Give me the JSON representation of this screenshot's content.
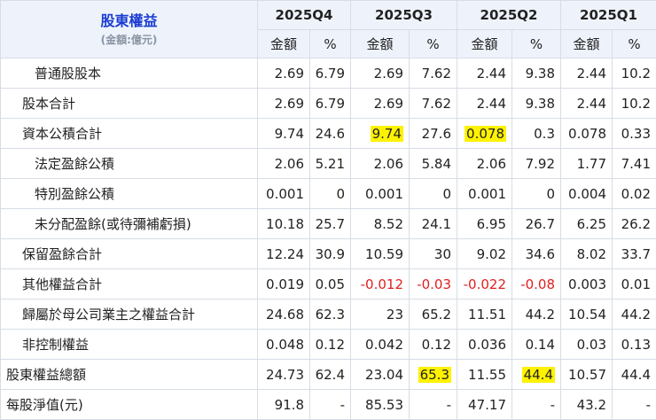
{
  "header": {
    "title": "股東權益",
    "unit": "(金額:億元)",
    "periods": [
      "2025Q4",
      "2025Q3",
      "2025Q2",
      "2025Q1"
    ],
    "amount_label": "金額",
    "pct_label": "%"
  },
  "rows": [
    {
      "label": "普通股股本",
      "indent": 2,
      "cells": [
        "2.69",
        "6.79",
        "2.69",
        "7.62",
        "2.44",
        "9.38",
        "2.44",
        "10.2"
      ]
    },
    {
      "label": "股本合計",
      "indent": 1,
      "cells": [
        "2.69",
        "6.79",
        "2.69",
        "7.62",
        "2.44",
        "9.38",
        "2.44",
        "10.2"
      ]
    },
    {
      "label": "資本公積合計",
      "indent": 1,
      "cells": [
        "9.74",
        "24.6",
        "9.74",
        "27.6",
        "0.078",
        "0.3",
        "0.078",
        "0.33"
      ]
    },
    {
      "label": "法定盈餘公積",
      "indent": 2,
      "cells": [
        "2.06",
        "5.21",
        "2.06",
        "5.84",
        "2.06",
        "7.92",
        "1.77",
        "7.41"
      ]
    },
    {
      "label": "特別盈餘公積",
      "indent": 2,
      "cells": [
        "0.001",
        "0",
        "0.001",
        "0",
        "0.001",
        "0",
        "0.004",
        "0.02"
      ]
    },
    {
      "label": "未分配盈餘(或待彌補虧損)",
      "indent": 2,
      "cells": [
        "10.18",
        "25.7",
        "8.52",
        "24.1",
        "6.95",
        "26.7",
        "6.25",
        "26.2"
      ]
    },
    {
      "label": "保留盈餘合計",
      "indent": 1,
      "cells": [
        "12.24",
        "30.9",
        "10.59",
        "30",
        "9.02",
        "34.6",
        "8.02",
        "33.7"
      ]
    },
    {
      "label": "其他權益合計",
      "indent": 1,
      "cells": [
        "0.019",
        "0.05",
        "-0.012",
        "-0.03",
        "-0.022",
        "-0.08",
        "0.003",
        "0.01"
      ]
    },
    {
      "label": "歸屬於母公司業主之權益合計",
      "indent": 1,
      "cells": [
        "24.68",
        "62.3",
        "23",
        "65.2",
        "11.51",
        "44.2",
        "10.54",
        "44.2"
      ]
    },
    {
      "label": "非控制權益",
      "indent": 1,
      "cells": [
        "0.048",
        "0.12",
        "0.042",
        "0.12",
        "0.036",
        "0.14",
        "0.03",
        "0.13"
      ]
    },
    {
      "label": "股東權益總額",
      "indent": 0,
      "cells": [
        "24.73",
        "62.4",
        "23.04",
        "65.3",
        "11.55",
        "44.4",
        "10.57",
        "44.4"
      ]
    },
    {
      "label": "每股淨值(元)",
      "indent": 0,
      "cells": [
        "91.8",
        "-",
        "85.53",
        "-",
        "47.17",
        "-",
        "43.2",
        "-"
      ]
    }
  ],
  "highlights": [
    [
      2,
      2
    ],
    [
      2,
      4
    ],
    [
      10,
      3
    ],
    [
      10,
      5
    ]
  ],
  "colors": {
    "header_bg": "#eef3fb",
    "title": "#1b3cd1",
    "negative": "#e02020",
    "highlight": "#fff200",
    "border": "#d7dde6"
  }
}
